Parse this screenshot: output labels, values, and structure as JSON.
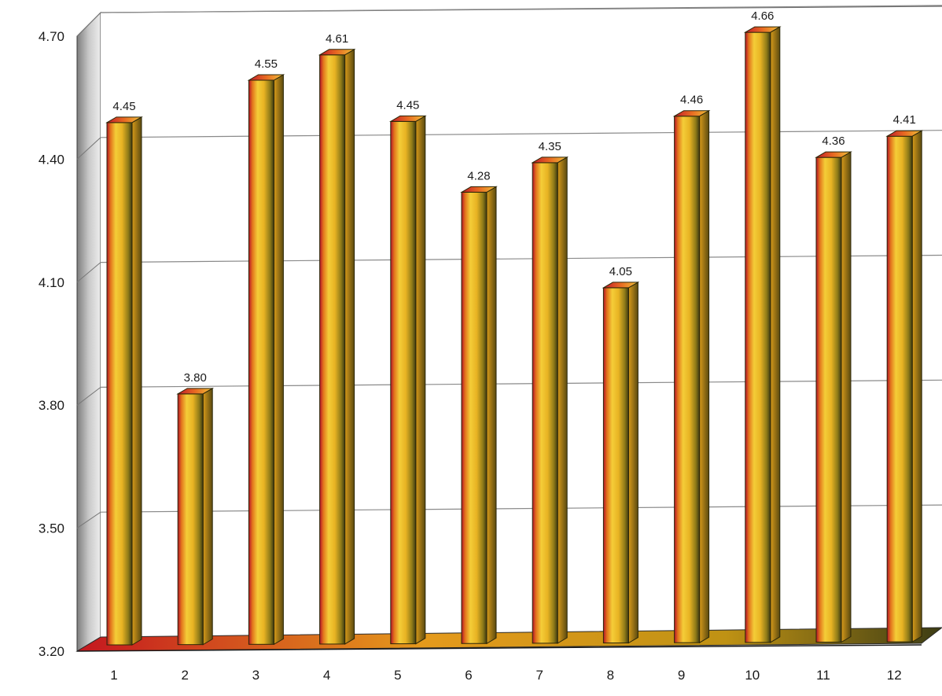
{
  "chart_data": {
    "type": "bar",
    "title": "",
    "xlabel": "",
    "ylabel": "",
    "categories": [
      "1",
      "2",
      "3",
      "4",
      "5",
      "6",
      "7",
      "8",
      "9",
      "10",
      "11",
      "12"
    ],
    "values": [
      4.45,
      3.8,
      4.55,
      4.61,
      4.45,
      4.28,
      4.35,
      4.05,
      4.46,
      4.66,
      4.36,
      4.41
    ],
    "value_labels": [
      "4.45",
      "3.80",
      "4.55",
      "4.61",
      "4.45",
      "4.28",
      "4.35",
      "4.05",
      "4.46",
      "4.66",
      "4.36",
      "4.41"
    ],
    "ylim": [
      3.2,
      4.7
    ],
    "y_ticks": [
      "3.20",
      "3.50",
      "3.80",
      "4.10",
      "4.40",
      "4.70"
    ],
    "y_tick_values": [
      3.2,
      3.5,
      3.8,
      4.1,
      4.4,
      4.7
    ],
    "grid": true,
    "legend": "none",
    "style": "3d-cylinder-column",
    "colors": {
      "bar_light": "#f2c531",
      "bar_mid": "#e6a81e",
      "bar_red": "#c8102e",
      "bar_dark": "#3a3410",
      "side_wall": "#9e9e9e",
      "floor": "#c98a14",
      "grid": "#808080"
    }
  }
}
